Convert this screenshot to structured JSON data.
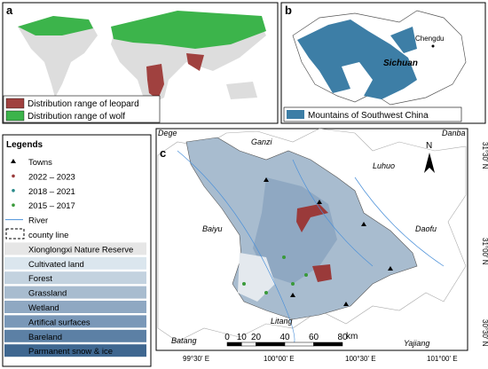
{
  "panel_a": {
    "label": "a",
    "legend": [
      "Distribution range of leopard",
      "Distribution range of wolf"
    ]
  },
  "panel_b": {
    "label": "b",
    "city": "Chengdu",
    "province": "Sichuan",
    "legend": "Mountains of Southwest China"
  },
  "legends": {
    "title": "Legends",
    "items": [
      "Towns",
      "2022 – 2023",
      "2018 – 2021",
      "2015 – 2017",
      "River",
      "county line",
      "Xionglongxi Nature Reserve",
      "Cultivated land",
      "Forest",
      "Grassland",
      "Wetland",
      "Artifical surfaces",
      "Bareland",
      "Parmanent snow & ice"
    ]
  },
  "panel_c": {
    "label": "c",
    "places": [
      "Dege",
      "Ganzi",
      "Danba",
      "Luhuo",
      "Baiyu",
      "Daofu",
      "Litang",
      "Batang",
      "Yajiang"
    ],
    "north": "N",
    "lat_labels": [
      "31°30' N",
      "31°00' N",
      "30°30' N"
    ],
    "lon_labels": [
      "99°30' E",
      "100°00' E",
      "100°30' E",
      "101°00' E"
    ],
    "scale_ticks": [
      0,
      10,
      20,
      40,
      60,
      80
    ],
    "scale_unit": "km"
  }
}
